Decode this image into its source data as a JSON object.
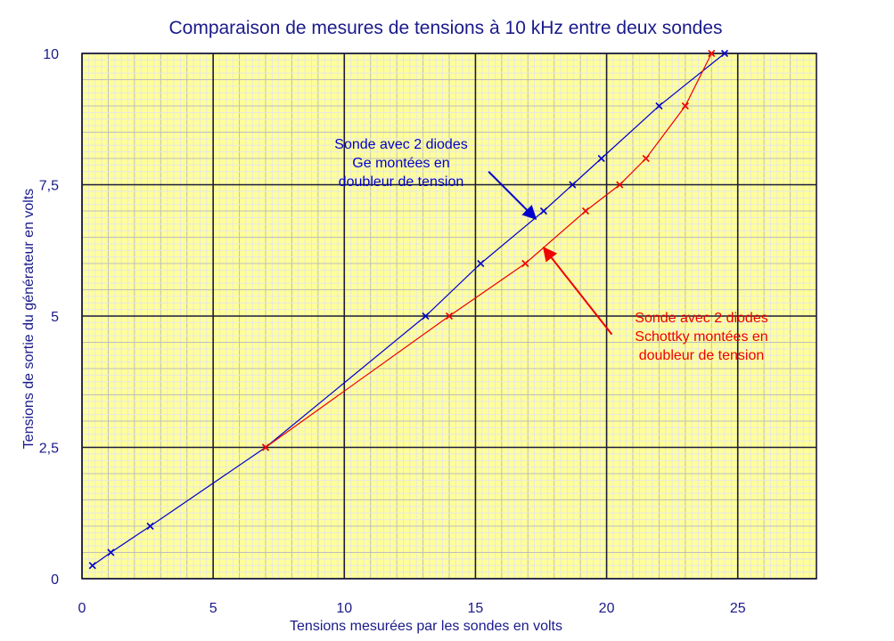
{
  "chart_data": {
    "type": "line",
    "title": "Comparaison de mesures de tensions à 10 kHz entre deux sondes",
    "xlabel": "Tensions mesurées par les sondes en volts",
    "ylabel": "Tensions de sortie du générateur en volts",
    "xlim": [
      0,
      28
    ],
    "ylim": [
      0,
      10
    ],
    "x_ticks": [
      {
        "value": 0,
        "label": "0"
      },
      {
        "value": 5,
        "label": "5"
      },
      {
        "value": 10,
        "label": "10"
      },
      {
        "value": 15,
        "label": "15"
      },
      {
        "value": 20,
        "label": "20"
      },
      {
        "value": 25,
        "label": "25"
      }
    ],
    "y_ticks": [
      {
        "value": 0,
        "label": "0"
      },
      {
        "value": 2.5,
        "label": "2,5"
      },
      {
        "value": 5,
        "label": "5"
      },
      {
        "value": 7.5,
        "label": "7,5"
      },
      {
        "value": 10,
        "label": "10"
      }
    ],
    "grid": true,
    "colors": {
      "background": "#ffff99",
      "minor_grid": "#e6e6e6",
      "major_grid": "#1a1a3a",
      "text": "#1a1a8a"
    },
    "series": [
      {
        "color": "#0000cc",
        "marker": "x",
        "points": [
          {
            "x": 0.4,
            "y": 0.25
          },
          {
            "x": 1.1,
            "y": 0.5
          },
          {
            "x": 2.6,
            "y": 1.0
          },
          {
            "x": 7.0,
            "y": 2.5
          },
          {
            "x": 13.1,
            "y": 5.0
          },
          {
            "x": 15.2,
            "y": 6.0
          },
          {
            "x": 17.6,
            "y": 7.0
          },
          {
            "x": 18.7,
            "y": 7.5
          },
          {
            "x": 19.8,
            "y": 8.0
          },
          {
            "x": 22.0,
            "y": 9.0
          },
          {
            "x": 24.5,
            "y": 10.0
          }
        ]
      },
      {
        "color": "#ee0000",
        "marker": "x",
        "points": [
          {
            "x": 7.0,
            "y": 2.5
          },
          {
            "x": 14.0,
            "y": 5.0
          },
          {
            "x": 16.9,
            "y": 6.0
          },
          {
            "x": 19.2,
            "y": 7.0
          },
          {
            "x": 20.5,
            "y": 7.5
          },
          {
            "x": 21.5,
            "y": 8.0
          },
          {
            "x": 23.0,
            "y": 9.0
          },
          {
            "x": 24.0,
            "y": 10.0
          }
        ]
      }
    ],
    "annotations": [
      {
        "color": "#0000cc",
        "lines": [
          "Sonde avec 2 diodes",
          "Ge montées en",
          "doubleur de tension"
        ],
        "arrow_from": {
          "x": 15.5,
          "y": 7.75
        },
        "arrow_to": {
          "x": 17.3,
          "y": 6.85
        }
      },
      {
        "color": "#ee0000",
        "lines": [
          "Sonde avec 2 diodes",
          "Schottky montées en",
          "doubleur de tension"
        ],
        "arrow_from": {
          "x": 20.2,
          "y": 4.65
        },
        "arrow_to": {
          "x": 17.6,
          "y": 6.3
        }
      }
    ]
  }
}
